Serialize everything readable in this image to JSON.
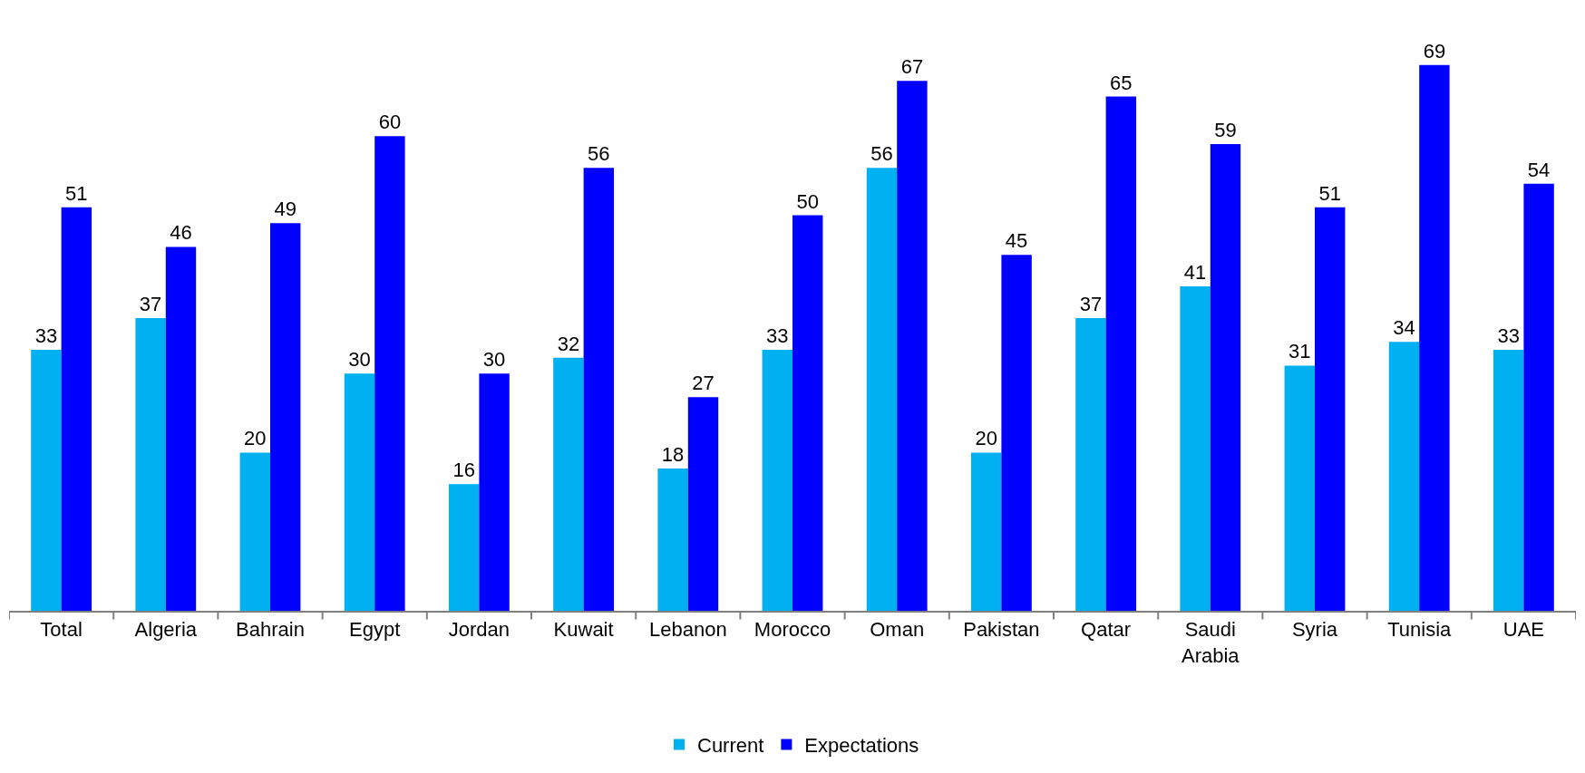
{
  "chart_data": {
    "type": "bar",
    "categories": [
      "Total",
      "Algeria",
      "Bahrain",
      "Egypt",
      "Jordan",
      "Kuwait",
      "Lebanon",
      "Morocco",
      "Oman",
      "Pakistan",
      "Qatar",
      "Saudi Arabia",
      "Syria",
      "Tunisia",
      "UAE"
    ],
    "series": [
      {
        "name": "Current",
        "color": "#00b0f0",
        "values": [
          33,
          37,
          20,
          30,
          16,
          32,
          18,
          33,
          56,
          20,
          37,
          41,
          31,
          34,
          33
        ]
      },
      {
        "name": "Expectations",
        "color": "#0000ff",
        "values": [
          51,
          46,
          49,
          60,
          30,
          56,
          27,
          50,
          67,
          45,
          65,
          59,
          51,
          69,
          54
        ]
      }
    ],
    "data_labels": true,
    "legend": "bottom"
  }
}
